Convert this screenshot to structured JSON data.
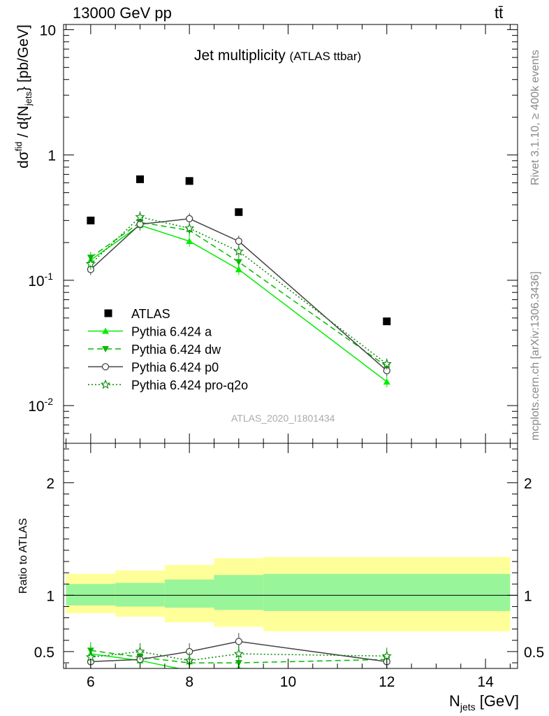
{
  "header": {
    "energy_label": "13000 GeV pp",
    "process_label": "tt̄",
    "title_main": "Jet multiplicity",
    "title_sub": "(ATLAS ttbar)",
    "watermark": "ATLAS_2020_I1801434",
    "rivet_label": "Rivet 3.1.10, ≥ 400k events",
    "source_label": "mcplots.cern.ch [arXiv:1306.3436]"
  },
  "axes": {
    "ylabel_top": "dσ^fid / d{N_jets} [pb/GeV]",
    "ylabel_ratio": "Ratio to ATLAS",
    "xlabel": "N_jets [GeV]"
  },
  "colors": {
    "data": "#000000",
    "pythia_a": "#00ee00",
    "pythia_dw": "#00bb00",
    "pythia_p0": "#444444",
    "pythia_proq2o": "#008800",
    "band_inner": "#99f599",
    "band_outer": "#ffff99"
  },
  "chart_data": [
    {
      "type": "scatter",
      "panel": "main",
      "x": [
        6,
        7,
        8,
        9,
        12
      ],
      "xlim": [
        5.45,
        14.65
      ],
      "ylim": [
        0.005,
        11
      ],
      "yscale": "log",
      "yticks": [
        "10^-2",
        "10^-1",
        "1",
        "10"
      ],
      "xticks": [
        "6",
        "8",
        "10",
        "12",
        "14"
      ],
      "legend_position": "lower-left",
      "series": [
        {
          "name": "ATLAS",
          "style": "markers",
          "marker": "square",
          "values": [
            0.3,
            0.64,
            0.62,
            0.35,
            0.047
          ]
        },
        {
          "name": "Pythia 6.424 a",
          "style": "solid",
          "marker": "triangle-up",
          "values": [
            0.145,
            0.275,
            0.205,
            0.122,
            0.0155
          ]
        },
        {
          "name": "Pythia 6.424 dw",
          "style": "dashed",
          "marker": "triangle-down",
          "values": [
            0.152,
            0.29,
            0.25,
            0.14,
            0.0205
          ]
        },
        {
          "name": "Pythia 6.424 p0",
          "style": "solid",
          "marker": "open-circle",
          "values": [
            0.122,
            0.28,
            0.31,
            0.205,
            0.019
          ]
        },
        {
          "name": "Pythia 6.424 pro-q2o",
          "style": "dotted",
          "marker": "open-star",
          "values": [
            0.135,
            0.32,
            0.26,
            0.17,
            0.0215
          ]
        }
      ]
    },
    {
      "type": "line",
      "panel": "ratio",
      "x": [
        6,
        7,
        8,
        9,
        12
      ],
      "ylim": [
        0.35,
        2.35
      ],
      "yticks": [
        "0.5",
        "1",
        "2"
      ],
      "xticks": [
        "6",
        "8",
        "10",
        "12",
        "14"
      ],
      "bands": {
        "edges": [
          5.5,
          6.5,
          7.5,
          8.5,
          9.5,
          14.5
        ],
        "inner": [
          [
            0.91,
            1.1
          ],
          [
            0.9,
            1.11
          ],
          [
            0.89,
            1.14
          ],
          [
            0.87,
            1.18
          ],
          [
            0.86,
            1.19
          ]
        ],
        "outer": [
          [
            0.84,
            1.19
          ],
          [
            0.81,
            1.22
          ],
          [
            0.76,
            1.27
          ],
          [
            0.72,
            1.33
          ],
          [
            0.68,
            1.34
          ]
        ]
      },
      "series": [
        {
          "name": "Pythia 6.424 a",
          "values": [
            0.48,
            0.42,
            0.33,
            0.35,
            0.33
          ]
        },
        {
          "name": "Pythia 6.424 dw",
          "values": [
            0.51,
            0.45,
            0.4,
            0.4,
            0.43
          ]
        },
        {
          "name": "Pythia 6.424 p0",
          "values": [
            0.41,
            0.43,
            0.5,
            0.59,
            0.41
          ]
        },
        {
          "name": "Pythia 6.424 pro-q2o",
          "values": [
            0.45,
            0.5,
            0.42,
            0.48,
            0.46
          ]
        }
      ]
    }
  ]
}
